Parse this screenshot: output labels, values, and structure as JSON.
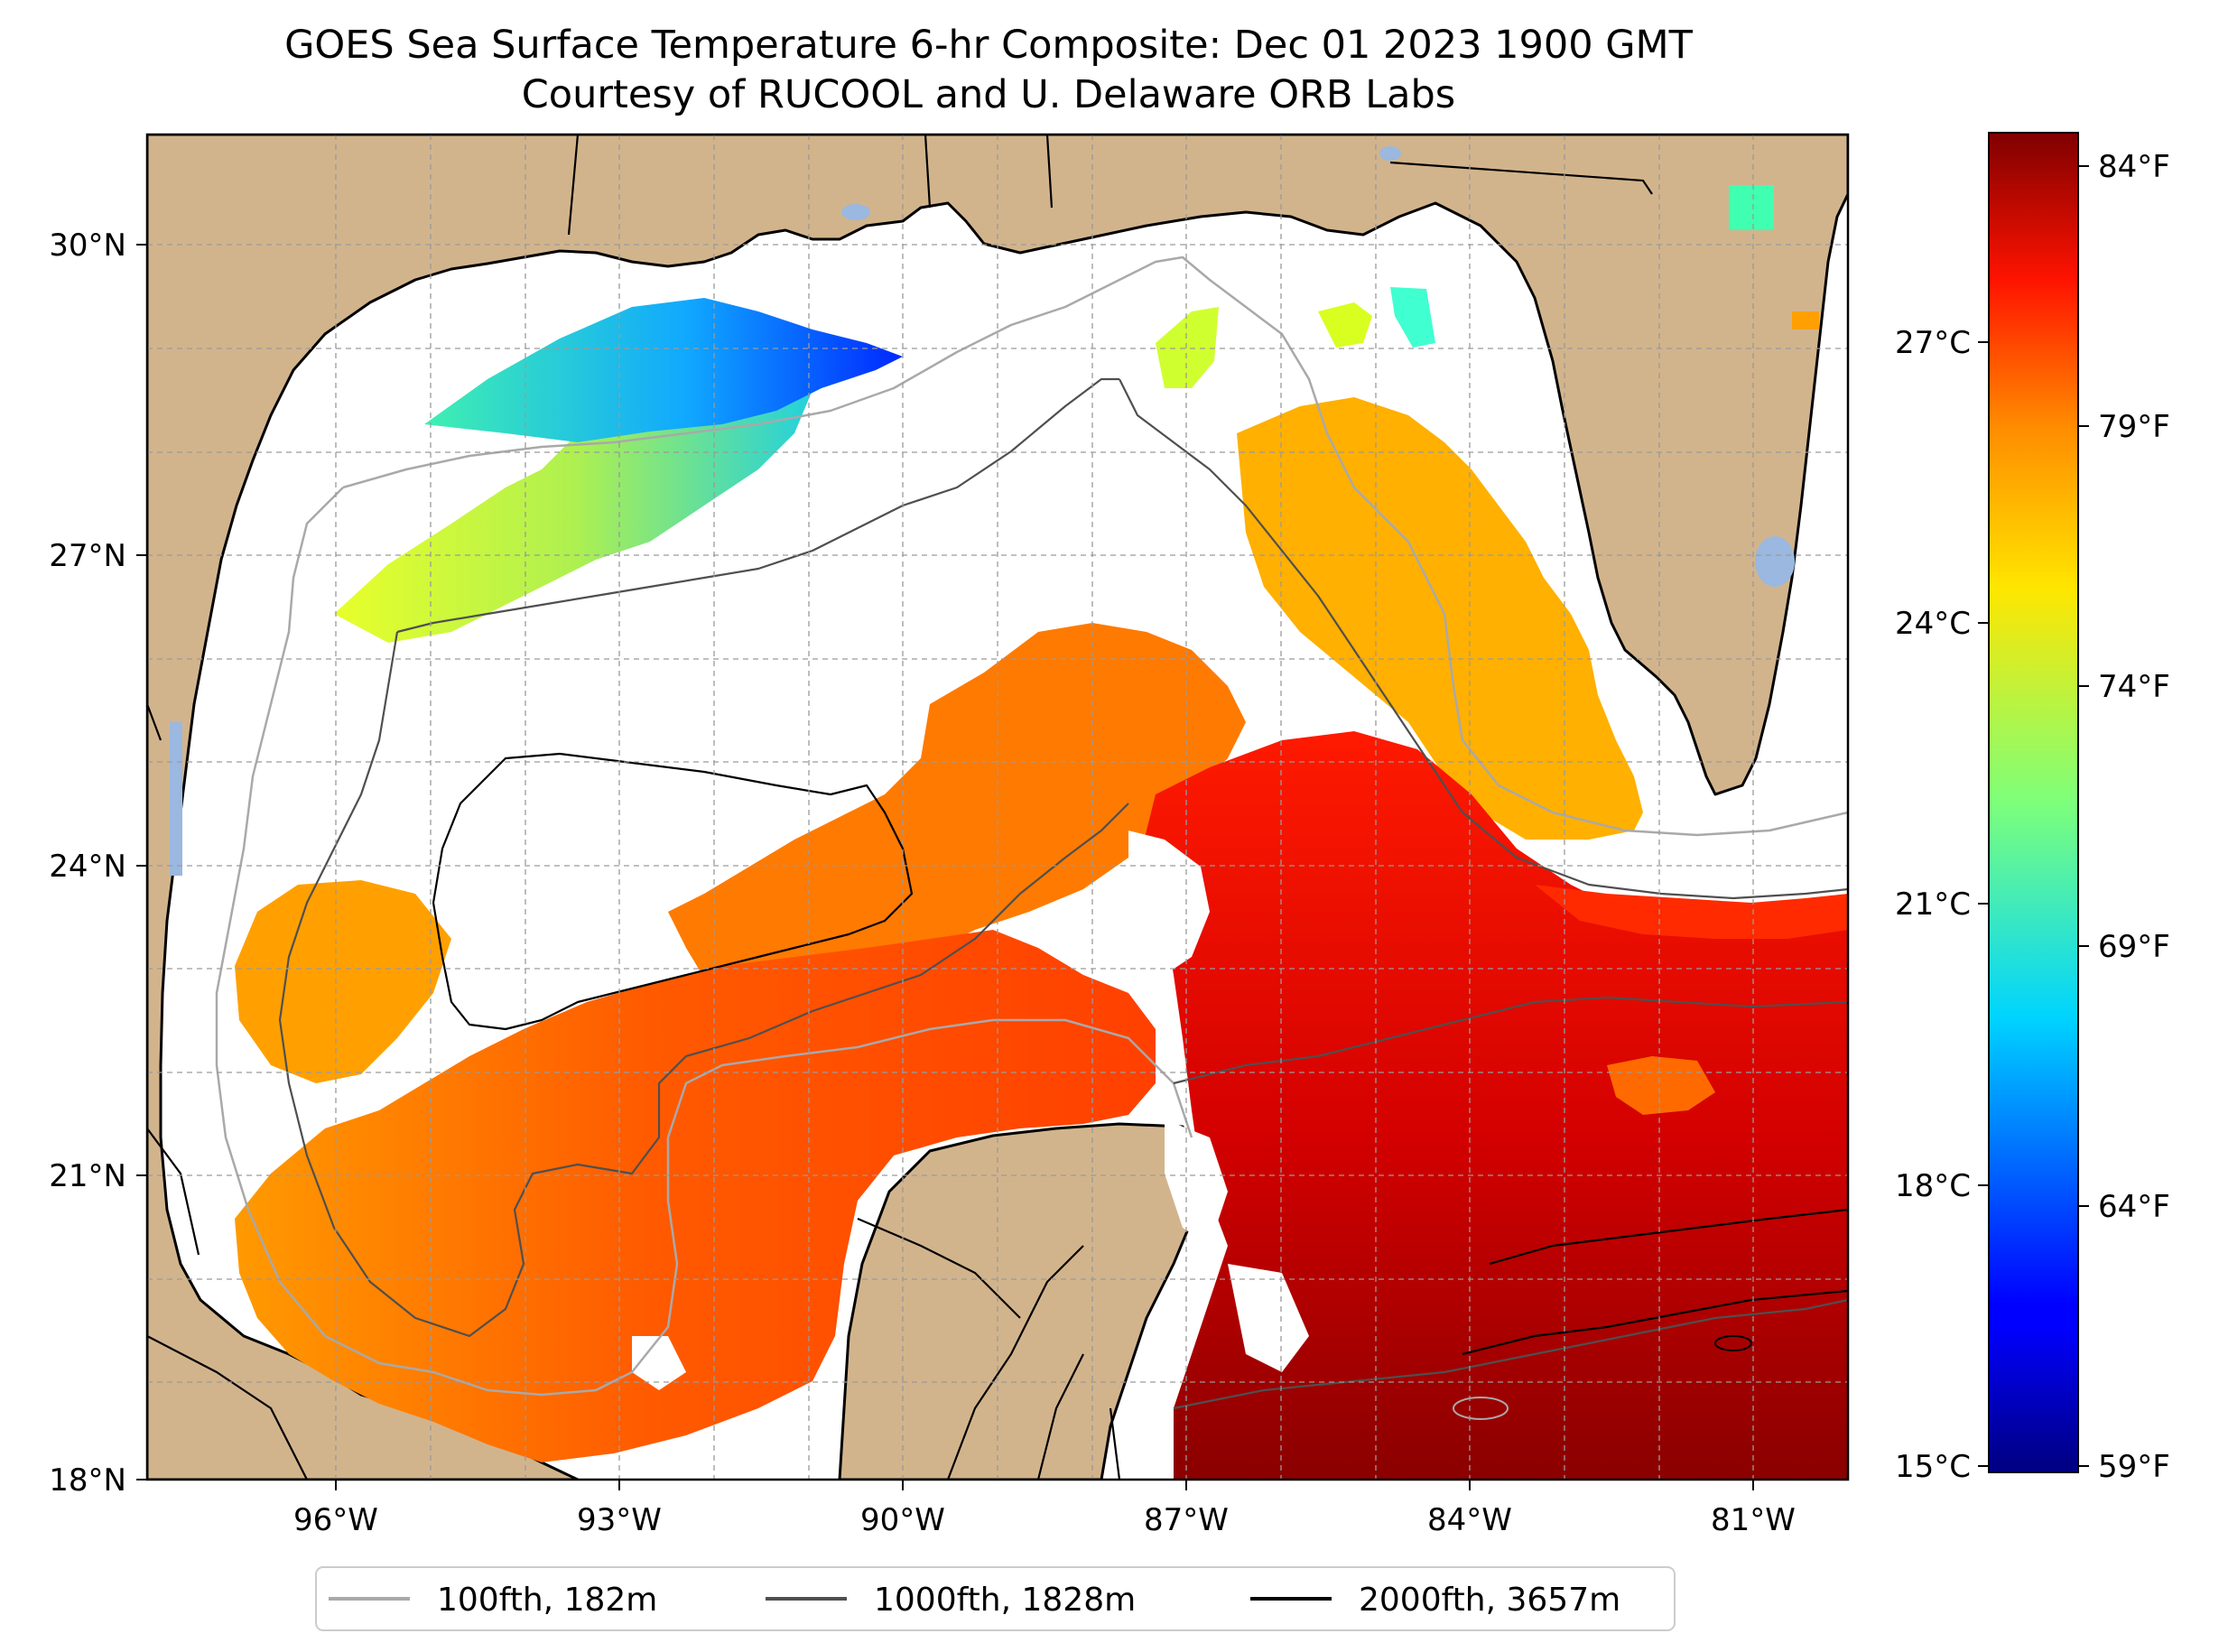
{
  "title": {
    "line1": "GOES Sea Surface Temperature 6-hr Composite: Dec 01 2023 1900 GMT",
    "line2": "Courtesy of RUCOOL and U. Delaware ORB Labs"
  },
  "map": {
    "region": "Gulf of Mexico",
    "lon_range": [
      -98,
      -80
    ],
    "lat_range": [
      18,
      31
    ],
    "lon_ticks": [
      "96°W",
      "93°W",
      "90°W",
      "87°W",
      "84°W",
      "81°W"
    ],
    "lat_ticks": [
      "30°N",
      "27°N",
      "24°N",
      "21°N",
      "18°N"
    ],
    "gridlines": true,
    "land_color": "#d2b48c",
    "ocean_color": "#ffffff",
    "lake_color": "#9ab8e0",
    "coastline_color": "#000000"
  },
  "colorbar": {
    "colormap": "jet",
    "celsius_range": [
      15,
      29
    ],
    "celsius_ticks": [
      "27°C",
      "24°C",
      "21°C",
      "18°C",
      "15°C"
    ],
    "fahrenheit_ticks": [
      "84°F",
      "79°F",
      "74°F",
      "69°F",
      "64°F",
      "59°F"
    ]
  },
  "legend": {
    "items": [
      {
        "label": "100fth, 182m",
        "color": "#a9a9a9"
      },
      {
        "label": "1000fth, 1828m",
        "color": "#4f4f4f"
      },
      {
        "label": "2000fth, 3657m",
        "color": "#000000"
      }
    ]
  }
}
